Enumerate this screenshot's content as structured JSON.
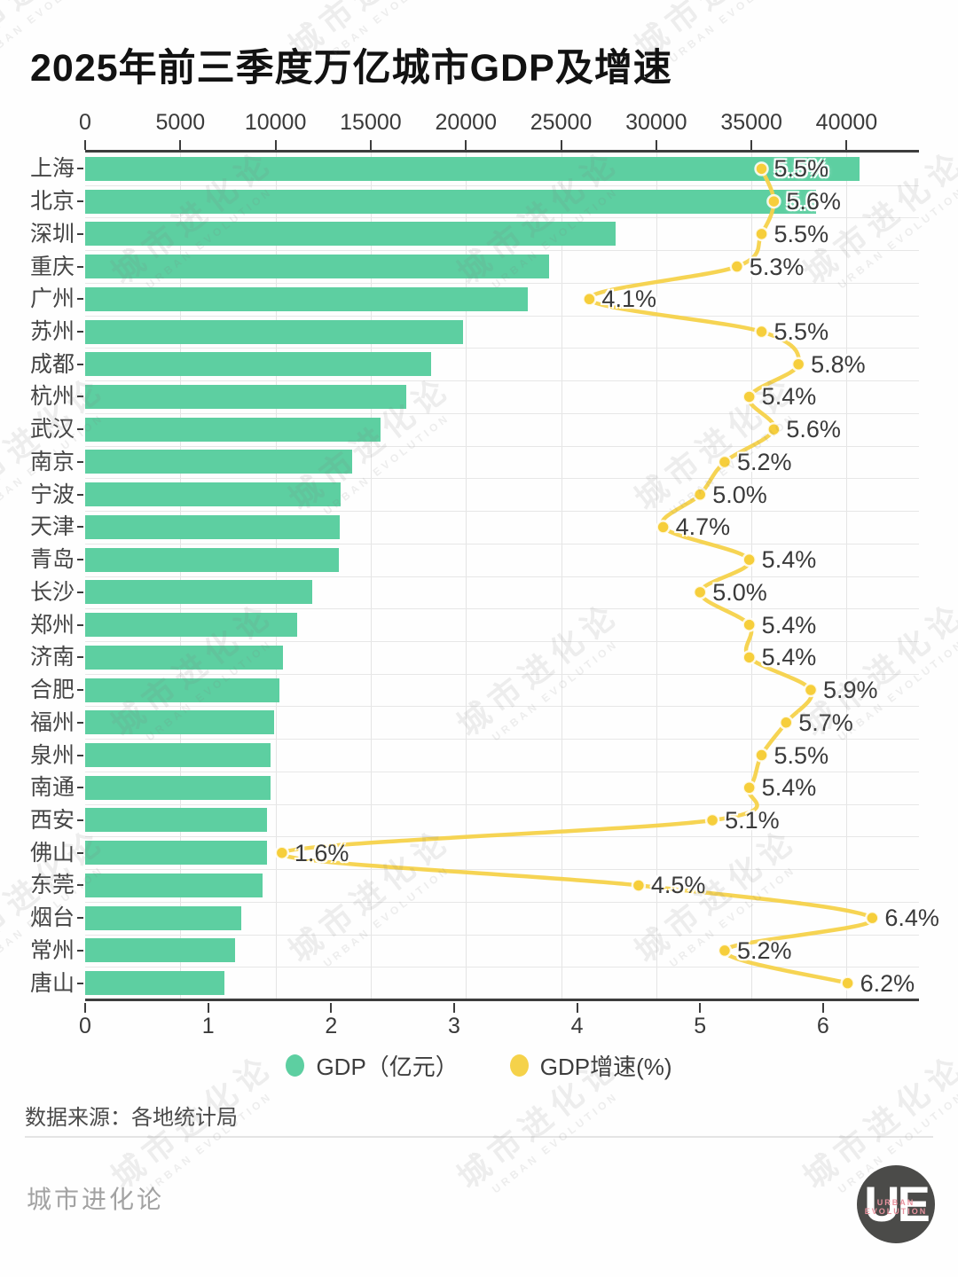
{
  "title": "2025年前三季度万亿城市GDP及增速",
  "chart_data": {
    "type": "bar",
    "orientation": "horizontal",
    "title": "2025年前三季度万亿城市GDP及增速",
    "grid": true,
    "legend_position": "bottom",
    "categories": [
      "上海",
      "北京",
      "深圳",
      "重庆",
      "广州",
      "苏州",
      "成都",
      "杭州",
      "武汉",
      "南京",
      "宁波",
      "天津",
      "青岛",
      "长沙",
      "郑州",
      "济南",
      "合肥",
      "福州",
      "泉州",
      "南通",
      "西安",
      "佛山",
      "东莞",
      "烟台",
      "常州",
      "唐山"
    ],
    "series": [
      {
        "name": "GDP（亿元）",
        "type": "bar",
        "color": "#5dcfa1",
        "axis": "top",
        "axis_ticks": [
          0,
          5000,
          10000,
          15000,
          20000,
          25000,
          30000,
          35000,
          40000
        ],
        "axis_range": [
          0,
          43800
        ],
        "values": [
          40700,
          38400,
          27880,
          24390,
          23230,
          19860,
          18150,
          16870,
          15500,
          14040,
          13420,
          13390,
          13330,
          11920,
          11130,
          10380,
          10220,
          9930,
          9760,
          9750,
          9570,
          9560,
          9310,
          8180,
          7870,
          7320
        ]
      },
      {
        "name": "GDP增速(%)",
        "type": "line",
        "color": "#f5d24a",
        "dot_color": "#f6ce3b",
        "axis": "bottom",
        "axis_ticks": [
          0,
          1,
          2,
          3,
          4,
          5,
          6
        ],
        "axis_range": [
          0,
          6.78
        ],
        "values": [
          5.5,
          5.6,
          5.5,
          5.3,
          4.1,
          5.5,
          5.8,
          5.4,
          5.6,
          5.2,
          5.0,
          4.7,
          5.4,
          5.0,
          5.4,
          5.4,
          5.9,
          5.7,
          5.5,
          5.4,
          5.1,
          1.6,
          4.5,
          6.4,
          5.2,
          6.2
        ],
        "point_labels": [
          "5.5%",
          "5.6%",
          "5.5%",
          "5.3%",
          "4.1%",
          "5.5%",
          "5.8%",
          "5.4%",
          "5.6%",
          "5.2%",
          "5.0%",
          "4.7%",
          "5.4%",
          "5.0%",
          "5.4%",
          "5.4%",
          "5.9%",
          "5.7%",
          "5.5%",
          "5.4%",
          "5.1%",
          "1.6%",
          "4.5%",
          "6.4%",
          "5.2%",
          "6.2%"
        ]
      }
    ]
  },
  "legend": {
    "items": [
      {
        "label": "GDP（亿元）",
        "color": "#5dcfa1"
      },
      {
        "label": "GDP增速(%)",
        "color": "#f5d24a"
      }
    ]
  },
  "source": "数据来源：各地统计局",
  "footer": {
    "brand": "城市进化论",
    "logo_main": "UE",
    "logo_sub_line1": "URBAN",
    "logo_sub_line2": "EVOLUTION"
  },
  "watermark": {
    "cjk": "城市进化论",
    "latin": "URBAN EVOLUTION"
  }
}
